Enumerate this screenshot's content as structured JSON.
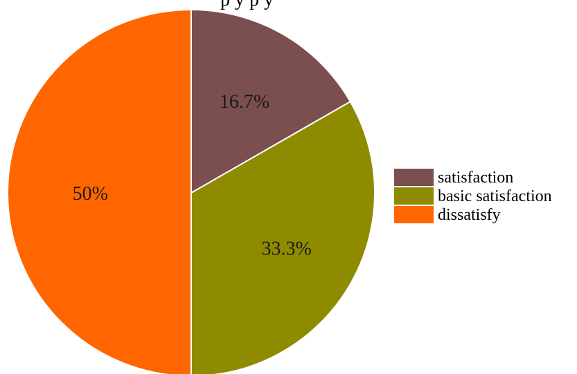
{
  "chart_data": {
    "type": "pie",
    "categories": [
      "satisfaction",
      "basic satisfaction",
      "dissatisfy"
    ],
    "values": [
      16.7,
      33.3,
      50
    ],
    "data_labels": [
      "16.7%",
      "33.3%",
      "50%"
    ],
    "colors": [
      "#7b4f4f",
      "#8f8b00",
      "#ff6600"
    ],
    "legend_placement": "right",
    "start_angle": "12 o'clock",
    "direction": "clockwise"
  },
  "top_text_fragment": "p                              y p                          y"
}
